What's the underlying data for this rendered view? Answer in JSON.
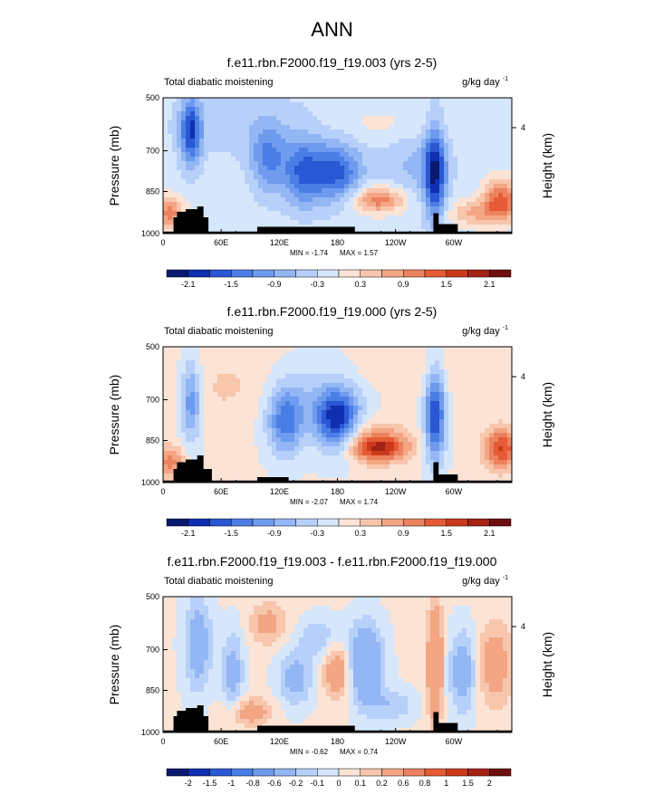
{
  "main_title": "ANN",
  "colormap_diverging": [
    "#08196e",
    "#0f2fb0",
    "#2a57d4",
    "#4a7ee6",
    "#6e9bee",
    "#93b6f4",
    "#b7d0fa",
    "#d6e6fb",
    "#fbe3d5",
    "#f8c6ad",
    "#f3a584",
    "#ec825e",
    "#e55b35",
    "#cb3a1d",
    "#a42114",
    "#6e0f0d"
  ],
  "chart_data": [
    {
      "type": "heatmap",
      "title": "f.e11.rbn.F2000.f19_f19.003 (yrs 2-5)",
      "subtitle": "Total diabatic moistening",
      "units_main": "g/kg day",
      "units_sup": "-1",
      "ylabel": "Pressure (mb)",
      "y2label": "Height (km)",
      "yticks": [
        "500",
        "700",
        "850",
        "1000"
      ],
      "y2ticks": [
        "4"
      ],
      "xticks": [
        "0",
        "60E",
        "120E",
        "180",
        "120W",
        "60W"
      ],
      "min_label": "MIN = -1.74",
      "max_label": "MAX = 1.57",
      "colorbar_labels": [
        "-2.1",
        "-1.5",
        "-0.9",
        "-0.3",
        "0.3",
        "0.9",
        "1.5",
        "2.1"
      ],
      "colorbar_label_mode": "every_other"
    },
    {
      "type": "heatmap",
      "title": "f.e11.rbn.F2000.f19_f19.000 (yrs 2-5)",
      "subtitle": "Total diabatic moistening",
      "units_main": "g/kg day",
      "units_sup": "-1",
      "ylabel": "Pressure (mb)",
      "y2label": "Height (km)",
      "yticks": [
        "500",
        "700",
        "850",
        "1000"
      ],
      "y2ticks": [
        "4"
      ],
      "xticks": [
        "0",
        "60E",
        "120E",
        "180",
        "120W",
        "60W"
      ],
      "min_label": "MIN = -2.07",
      "max_label": "MAX = 1.74",
      "colorbar_labels": [
        "-2.1",
        "-1.5",
        "-0.9",
        "-0.3",
        "0.3",
        "0.9",
        "1.5",
        "2.1"
      ],
      "colorbar_label_mode": "every_other"
    },
    {
      "type": "heatmap",
      "title": "f.e11.rbn.F2000.f19_f19.003 - f.e11.rbn.F2000.f19_f19.000",
      "subtitle": "Total diabatic moistening",
      "units_main": "g/kg day",
      "units_sup": "-1",
      "ylabel": "Pressure (mb)",
      "y2label": "Height (km)",
      "yticks": [
        "500",
        "700",
        "850",
        "1000"
      ],
      "y2ticks": [
        "4"
      ],
      "xticks": [
        "0",
        "60E",
        "120E",
        "180",
        "120W",
        "60W"
      ],
      "min_label": "MIN = -0.62",
      "max_label": "MAX = 0.74",
      "colorbar_labels": [
        "-2",
        "-1.5",
        "-1",
        "-0.8",
        "-0.6",
        "-0.2",
        "-0.1",
        "0",
        "0.1",
        "0.2",
        "0.6",
        "0.8",
        "1",
        "1.5",
        "2"
      ],
      "colorbar_label_mode": "boundaries"
    }
  ]
}
